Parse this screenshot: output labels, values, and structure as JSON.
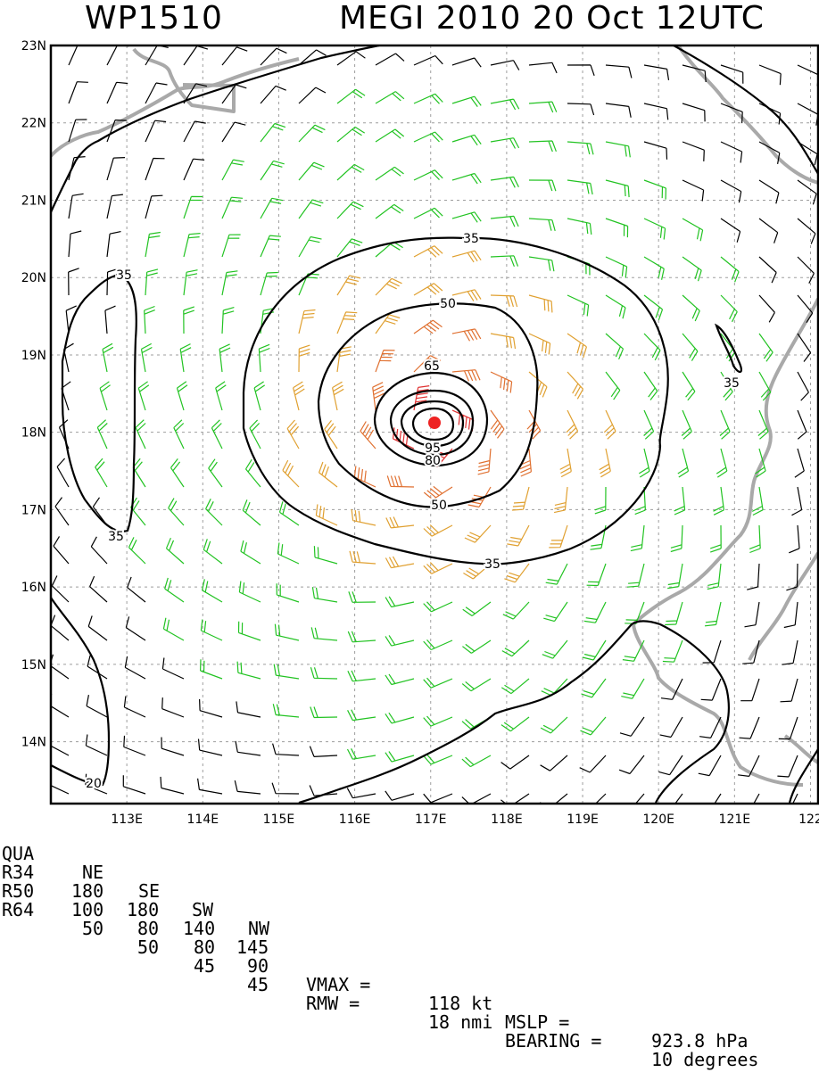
{
  "header": {
    "storm_id": "WP1510",
    "storm_info": "MEGI 2010 20 Oct 12UTC"
  },
  "map": {
    "lon_min": 112.0,
    "lon_max": 122.1,
    "lat_min": 13.2,
    "lat_max": 23.0,
    "lat_ticks": [
      "23N",
      "22N",
      "21N",
      "20N",
      "19N",
      "18N",
      "17N",
      "16N",
      "15N",
      "14N"
    ],
    "lon_ticks": [
      "113E",
      "114E",
      "115E",
      "116E",
      "117E",
      "118E",
      "119E",
      "120E",
      "121E",
      "122"
    ],
    "center": {
      "lon": 117.1,
      "lat": 18.1
    },
    "contour_labels": [
      "35",
      "35",
      "35",
      "35",
      "35",
      "50",
      "50",
      "65",
      "80",
      "95",
      "20"
    ],
    "colors": {
      "frame": "#000000",
      "grid": "#9e9e9e",
      "coast": "#a9a9a9",
      "barb_lt34": "#000000",
      "barb_34_50": "#22c322",
      "barb_50_64": "#e0a030",
      "barb_64_80": "#e07030",
      "barb_gt80": "#e03030",
      "center_dot": "#ee2222"
    }
  },
  "stats": {
    "header": {
      "label": "QUA",
      "ne": "NE",
      "se": "SE",
      "sw": "SW",
      "nw": "NW"
    },
    "rows": [
      {
        "label": "R34",
        "ne": "180",
        "se": "180",
        "sw": "140",
        "nw": "145"
      },
      {
        "label": "R50",
        "ne": "100",
        "se": "80",
        "sw": "80",
        "nw": "90"
      },
      {
        "label": "R64",
        "ne": "50",
        "se": "50",
        "sw": "45",
        "nw": "45"
      }
    ],
    "vmax": {
      "label": "VMAX =",
      "value": "118 kt"
    },
    "mslp": {
      "label": "MSLP =",
      "value": "923.8 hPa"
    },
    "rmw": {
      "label": "RMW =",
      "value": "18 nmi"
    },
    "bearing": {
      "label": "BEARING =",
      "value": "10 degrees"
    }
  }
}
